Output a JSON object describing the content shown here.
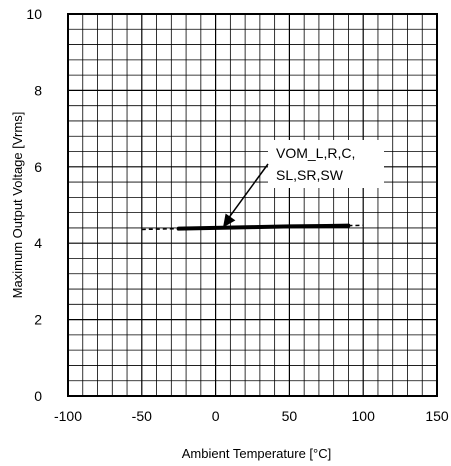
{
  "chart_data": {
    "type": "line",
    "title": "",
    "xlabel": "Ambient Temperature [°C]",
    "ylabel": "Maximum Output Voltage [Vrms]",
    "xlim": [
      -100,
      150
    ],
    "ylim": [
      0,
      10
    ],
    "x_ticks": [
      -100,
      -50,
      0,
      50,
      100,
      150
    ],
    "y_ticks": [
      0,
      2,
      4,
      6,
      8,
      10
    ],
    "x_tick_labels": [
      "-100",
      "-50",
      "0",
      "50",
      "100",
      "150"
    ],
    "y_tick_labels": [
      "0",
      "2",
      "4",
      "6",
      "8",
      "10"
    ],
    "grid": true,
    "minor_grid": true,
    "series": [
      {
        "name": "VOM_L,R,C,SL,SR,SW",
        "x": [
          -25,
          0,
          25,
          50,
          75,
          90
        ],
        "y": [
          4.38,
          4.4,
          4.42,
          4.44,
          4.45,
          4.46
        ]
      }
    ],
    "extrapolated": [
      {
        "x": [
          -50,
          -25
        ],
        "y": [
          4.36,
          4.38
        ]
      },
      {
        "x": [
          90,
          100
        ],
        "y": [
          4.46,
          4.47
        ]
      }
    ],
    "annotation": {
      "lines": [
        "VOM_L,R,C,",
        "SL,SR,SW"
      ],
      "arrow_target": {
        "x": 5,
        "y": 4.41
      }
    },
    "colors": {
      "line": "#000000",
      "grid": "#000000",
      "background": "#ffffff"
    }
  }
}
